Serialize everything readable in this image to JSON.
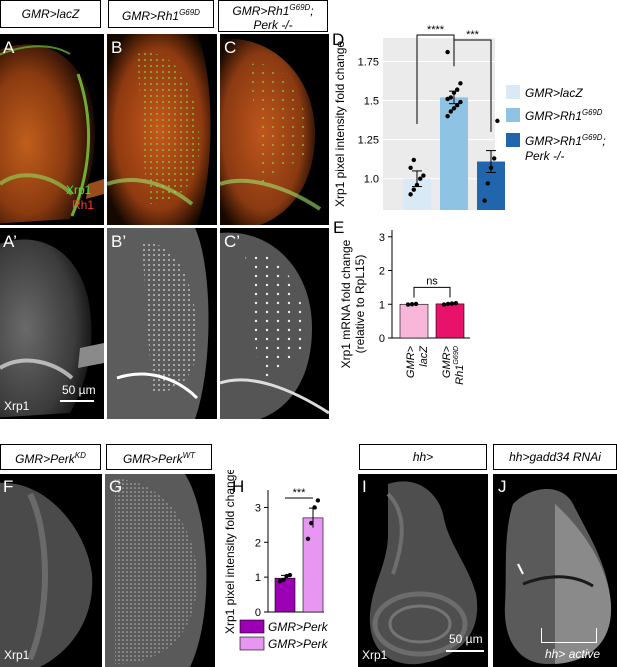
{
  "header": {
    "g1": "GMR>lacZ",
    "g2_main": "GMR>Rh1",
    "g2_sup": "G69D",
    "g3_line1_main": "GMR>Rh1",
    "g3_line1_sup": "G69D",
    "g3_line1_tail": ";",
    "g3_line2": "Perk -/-",
    "g4_main": "GMR>Perk",
    "g4_sup": "KD",
    "g5_main": "GMR>Perk",
    "g5_sup": "WT",
    "g6": "hh>",
    "g7": "hh>gadd34 RNAi"
  },
  "labels": {
    "A": "A",
    "B": "B",
    "C": "C",
    "D": "D",
    "E": "E",
    "A2": "A’",
    "B2": "B’",
    "C2": "C’",
    "F": "F",
    "G": "G",
    "H": "H",
    "I": "I",
    "J": "J"
  },
  "stain": {
    "green": "Xrp1",
    "red": "Rh1",
    "gray": "Xrp1"
  },
  "scale": {
    "bar1": "50 µm",
    "bar2": "50 µm"
  },
  "annotation": {
    "active": "hh> active"
  },
  "colors": {
    "lacz": "#d9e9f6",
    "rh1": "#8ec3e3",
    "perk": "#2166ac",
    "wt_mrna": "#f8b7d8",
    "rh1_mrna": "#e8126a",
    "perk_kd": "#9b00b5",
    "perk_wt": "#e796f2"
  },
  "chart_data": [
    {
      "id": "D",
      "type": "bar",
      "ylabel": "Xrp1 pixel intensity fold change",
      "yticks": [
        "1.0",
        "1.25",
        "1.5",
        "1.75"
      ],
      "ylim": [
        0.8,
        1.9
      ],
      "grid": true,
      "legend": [
        {
          "main": "GMR>lacZ",
          "sup": ""
        },
        {
          "main": "GMR>Rh1",
          "sup": "G69D"
        },
        {
          "main": "GMR>Rh1",
          "sup": "G69D",
          "tail": ";",
          "line2": "Perk -/-"
        }
      ],
      "sig": [
        "****",
        "***"
      ],
      "series": [
        {
          "name": "GMR>lacZ",
          "value": 1.0,
          "err": 0.05,
          "points": [
            0.9,
            0.93,
            0.96,
            1.0,
            1.02,
            1.07,
            1.12
          ]
        },
        {
          "name": "GMR>Rh1G69D",
          "value": 1.52,
          "err": 0.04,
          "points": [
            1.4,
            1.43,
            1.45,
            1.47,
            1.49,
            1.51,
            1.52,
            1.55,
            1.57,
            1.61,
            1.81
          ]
        },
        {
          "name": "GMR>Rh1G69D; Perk -/-",
          "value": 1.11,
          "err": 0.07,
          "points": [
            0.86,
            0.97,
            1.07,
            1.13,
            1.37
          ]
        }
      ]
    },
    {
      "id": "E",
      "type": "bar",
      "ylabel": "Xrp1 mRNA fold change",
      "ylabel2": "(relative to RpL15)",
      "yticks": [
        "0",
        "1",
        "2",
        "3"
      ],
      "ylim": [
        0,
        3.2
      ],
      "sig": [
        "ns"
      ],
      "categories": [
        {
          "l1": "GMR>",
          "l2": "lacZ",
          "sup": ""
        },
        {
          "l1": "GMR>",
          "l2": "Rh1",
          "sup": "G69D"
        }
      ],
      "series": [
        {
          "name": "GMR>lacZ",
          "value": 1.0,
          "points": [
            0.99,
            1.0,
            1.01
          ]
        },
        {
          "name": "GMR>Rh1G69D",
          "value": 1.01,
          "points": [
            0.99,
            1.01,
            1.02,
            1.03
          ]
        }
      ]
    },
    {
      "id": "H",
      "type": "bar",
      "ylabel": "Xrp1 pixel intensity fold change",
      "yticks": [
        "0",
        "1",
        "2",
        "3"
      ],
      "ylim": [
        0,
        3.5
      ],
      "sig": [
        "***"
      ],
      "legend": [
        {
          "main": "GMR>Perk",
          "sup": "KD"
        },
        {
          "main": "GMR>Perk",
          "sup": "WT"
        }
      ],
      "series": [
        {
          "name": "GMR>PerkKD",
          "value": 0.97,
          "err": 0.08,
          "points": [
            0.88,
            0.92,
            1.03,
            1.06
          ]
        },
        {
          "name": "GMR>PerkWT",
          "value": 2.7,
          "err": 0.28,
          "points": [
            2.1,
            2.55,
            3.0,
            3.2
          ]
        }
      ]
    }
  ]
}
